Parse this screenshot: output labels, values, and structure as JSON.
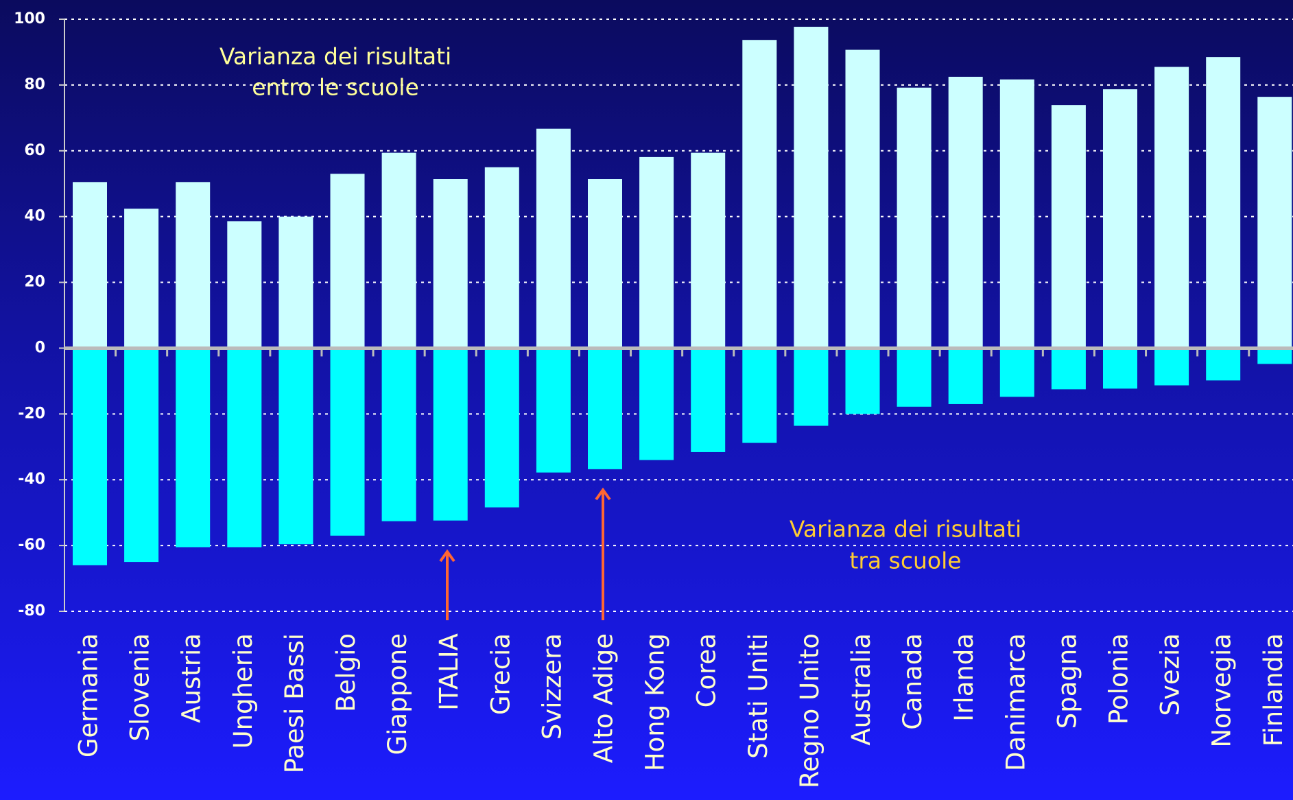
{
  "chart_data": {
    "type": "bar",
    "stacked": false,
    "categories": [
      "Germania",
      "Slovenia",
      "Austria",
      "Ungheria",
      "Paesi Bassi",
      "Belgio",
      "Giappone",
      "ITALIA",
      "Grecia",
      "Svizzera",
      "Alto Adige",
      "Hong Kong",
      "Corea",
      "Stati Uniti",
      "Regno Unito",
      "Australia",
      "Canada",
      "Irlanda",
      "Danimarca",
      "Spagna",
      "Polonia",
      "Svezia",
      "Norvegia",
      "Finlandia"
    ],
    "series": [
      {
        "color": "#ccffff",
        "values": [
          50.5,
          42.4,
          50.5,
          38.6,
          40,
          53,
          59.4,
          51.4,
          55,
          66.7,
          51.4,
          58.1,
          59.4,
          93.7,
          97.7,
          90.7,
          79.2,
          82.5,
          81.7,
          73.9,
          78.7,
          85.5,
          88.5,
          76.4
        ]
      },
      {
        "color": "#00ffff",
        "values": [
          -66,
          -65,
          -60.5,
          -60.5,
          -59.6,
          -57,
          -52.6,
          -52.4,
          -48.4,
          -37.8,
          -36.8,
          -34,
          -31.6,
          -28.8,
          -23.6,
          -20,
          -17.8,
          -17,
          -14.8,
          -12.5,
          -12.3,
          -11.3,
          -9.8,
          -4.8
        ]
      }
    ],
    "annotations": [
      {
        "text": [
          "Varianza dei risultati",
          "entro le scuole"
        ],
        "color": "#ffff99"
      },
      {
        "text": [
          "Varianza dei risultati",
          "tra scuole"
        ],
        "color": "#ffcc33"
      }
    ],
    "ylim": [
      -80,
      100
    ],
    "yticks": [
      -80,
      -60,
      -40,
      -20,
      0,
      20,
      40,
      60,
      80,
      100
    ],
    "grid": true
  }
}
